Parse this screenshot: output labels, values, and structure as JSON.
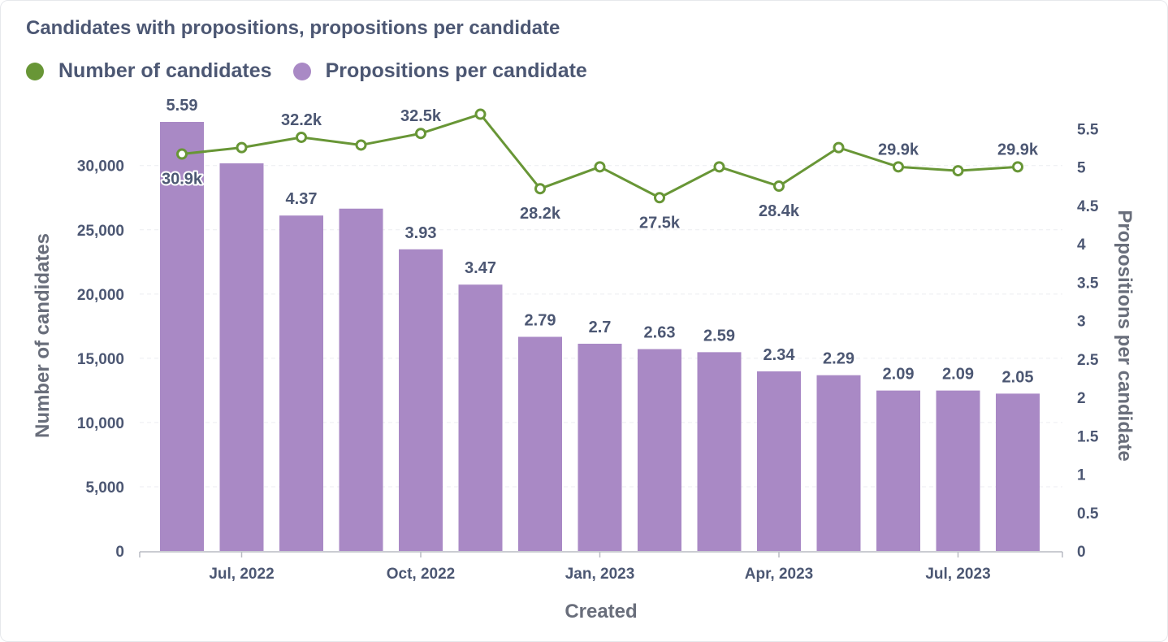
{
  "chart_data": {
    "type": "bar",
    "title": "Candidates with propositions, propositions per candidate",
    "xlabel": "Created",
    "ylabel_left": "Number of candidates",
    "ylabel_right": "Propositions per candidate",
    "x_tick_labels": [
      "Jul, 2022",
      "Oct, 2022",
      "Jan, 2023",
      "Apr, 2023",
      "Jul, 2023"
    ],
    "x_tick_positions": [
      1,
      4,
      7,
      10,
      13
    ],
    "y_left_ticks": [
      "0",
      "5,000",
      "10,000",
      "15,000",
      "20,000",
      "25,000",
      "30,000"
    ],
    "y_left_range": [
      0,
      33400
    ],
    "y_right_ticks": [
      "0",
      "0.5",
      "1",
      "1.5",
      "2",
      "2.5",
      "3",
      "3.5",
      "4",
      "4.5",
      "5",
      "5.5"
    ],
    "y_right_range": [
      0,
      5.59
    ],
    "grid": true,
    "legend_position": "top-left",
    "series": [
      {
        "name": "Number of candidates",
        "type": "line",
        "axis": "left",
        "color": "#689636",
        "values": [
          30900,
          31400,
          32200,
          31600,
          32500,
          34000,
          28200,
          29900,
          27500,
          29900,
          28400,
          31400,
          29900,
          29600,
          29900
        ],
        "labels": [
          "30.9k",
          "",
          "32.2k",
          "",
          "32.5k",
          "",
          "28.2k",
          "",
          "27.5k",
          "",
          "28.4k",
          "",
          "29.9k",
          "",
          "29.9k"
        ]
      },
      {
        "name": "Propositions per candidate",
        "type": "bar",
        "axis": "right",
        "color": "#a989c5",
        "values": [
          5.59,
          5.05,
          4.37,
          4.46,
          3.93,
          3.47,
          2.79,
          2.7,
          2.63,
          2.59,
          2.34,
          2.29,
          2.09,
          2.09,
          2.05
        ],
        "labels": [
          "5.59",
          "",
          "4.37",
          "",
          "3.93",
          "3.47",
          "2.79",
          "2.7",
          "2.63",
          "2.59",
          "2.34",
          "2.29",
          "2.09",
          "2.09",
          "2.05"
        ]
      }
    ]
  }
}
